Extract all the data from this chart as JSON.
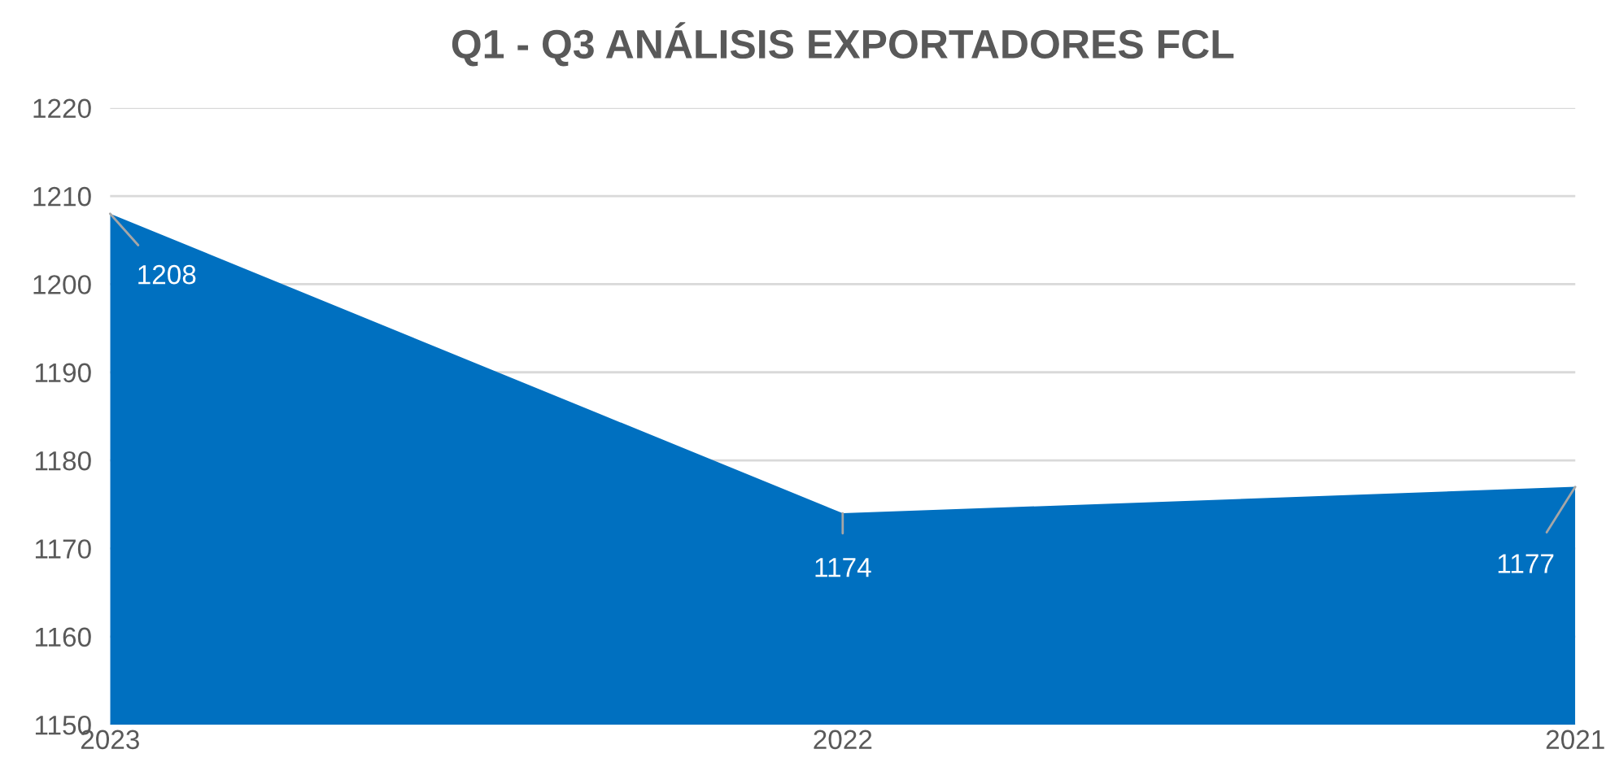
{
  "chart_data": {
    "type": "area",
    "title": "Q1 - Q3 ANÁLISIS EXPORTADORES FCL",
    "categories": [
      "2023",
      "2022",
      "2021"
    ],
    "series": [
      {
        "color": "#0070c0",
        "values": [
          1208,
          1174,
          1177
        ]
      }
    ],
    "ylim": [
      1150,
      1220
    ],
    "yticks": [
      1150,
      1160,
      1170,
      1180,
      1190,
      1200,
      1210,
      1220
    ],
    "grid": "y",
    "data_labels": true
  }
}
